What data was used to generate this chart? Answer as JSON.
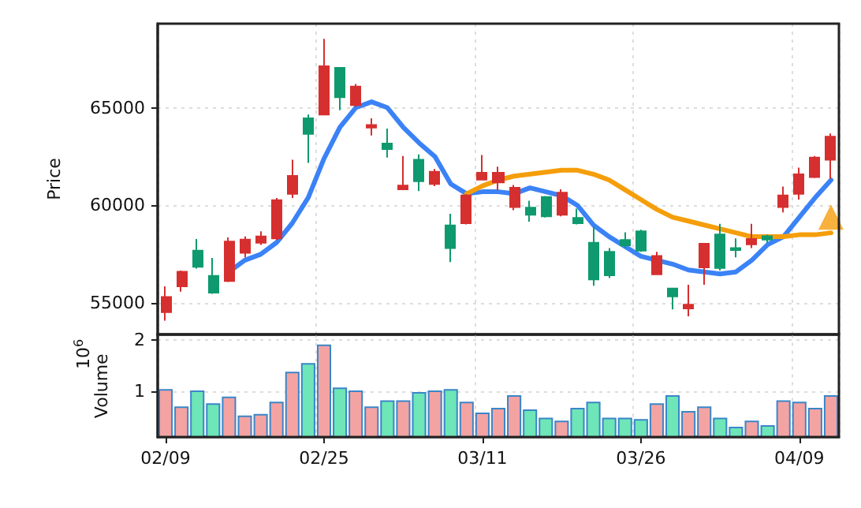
{
  "chart_data": [
    {
      "type": "candlestick",
      "ylabel": "Price",
      "tick_labels": "y",
      "grid": true,
      "ylim": [
        53400,
        69300
      ],
      "yticks": [
        55000,
        60000,
        65000
      ],
      "categories": [
        null,
        null,
        null,
        null,
        null,
        null,
        null,
        null,
        null,
        null,
        null,
        null,
        null,
        null,
        null,
        null,
        null,
        null,
        null,
        null,
        null,
        null,
        null,
        null,
        null,
        null,
        null,
        null,
        null,
        null,
        null,
        null,
        null,
        null,
        null,
        null,
        null,
        null,
        null,
        null,
        null,
        null,
        null
      ],
      "ohlc": [
        [
          54540,
          55860,
          54110,
          55320
        ],
        [
          55860,
          56670,
          55590,
          56610
        ],
        [
          57690,
          58280,
          56770,
          56860
        ],
        [
          56400,
          57310,
          55480,
          55540
        ],
        [
          56130,
          58360,
          56080,
          58150
        ],
        [
          57580,
          58410,
          57340,
          58250
        ],
        [
          58090,
          58680,
          57980,
          58410
        ],
        [
          58310,
          60380,
          58230,
          60270
        ],
        [
          60590,
          62340,
          60380,
          61510
        ],
        [
          64460,
          64650,
          62180,
          63660
        ],
        [
          64650,
          68520,
          64650,
          67120
        ],
        [
          67040,
          67040,
          64870,
          65540
        ],
        [
          65130,
          66210,
          65030,
          66080
        ],
        [
          63980,
          64460,
          63580,
          64110
        ],
        [
          63170,
          63930,
          62450,
          62880
        ],
        [
          60830,
          62530,
          60780,
          61020
        ],
        [
          62340,
          62610,
          60730,
          61240
        ],
        [
          61100,
          61860,
          60990,
          61720
        ],
        [
          58980,
          59570,
          57100,
          57820
        ],
        [
          59090,
          60570,
          59030,
          60510
        ],
        [
          61320,
          62580,
          61320,
          61670
        ],
        [
          61180,
          61990,
          60780,
          61670
        ],
        [
          59920,
          61050,
          59760,
          60910
        ],
        [
          59890,
          60240,
          59170,
          59520
        ],
        [
          60430,
          60480,
          59380,
          59440
        ],
        [
          59520,
          60830,
          59440,
          60650
        ],
        [
          59360,
          59840,
          59030,
          59090
        ],
        [
          58090,
          58900,
          55890,
          56210
        ],
        [
          57630,
          57820,
          56290,
          56430
        ],
        [
          58230,
          58630,
          57820,
          57960
        ],
        [
          58680,
          58760,
          57630,
          57690
        ],
        [
          56480,
          57630,
          56480,
          57420
        ],
        [
          55750,
          55750,
          54680,
          55350
        ],
        [
          54730,
          55940,
          54330,
          54920
        ],
        [
          56830,
          58040,
          55940,
          58040
        ],
        [
          58520,
          59060,
          56670,
          56800
        ],
        [
          57820,
          58310,
          57340,
          57720
        ],
        [
          58010,
          59060,
          57820,
          58280
        ],
        [
          58420,
          58500,
          58090,
          58250
        ],
        [
          59920,
          60970,
          59650,
          60510
        ],
        [
          60590,
          61940,
          60300,
          61590
        ],
        [
          61450,
          62530,
          61400,
          62450
        ],
        [
          62340,
          63680,
          61370,
          63520
        ]
      ],
      "colors": [
        "#d62f2f",
        "#d62f2f",
        "#0e9a6e",
        "#0e9a6e",
        "#d62f2f",
        "#d62f2f",
        "#d62f2f",
        "#d62f2f",
        "#d62f2f",
        "#0e9a6e",
        "#d62f2f",
        "#0e9a6e",
        "#d62f2f",
        "#d62f2f",
        "#0e9a6e",
        "#d62f2f",
        "#0e9a6e",
        "#d62f2f",
        "#0e9a6e",
        "#d62f2f",
        "#d62f2f",
        "#d62f2f",
        "#d62f2f",
        "#0e9a6e",
        "#0e9a6e",
        "#d62f2f",
        "#0e9a6e",
        "#0e9a6e",
        "#0e9a6e",
        "#0e9a6e",
        "#0e9a6e",
        "#d62f2f",
        "#0e9a6e",
        "#d62f2f",
        "#d62f2f",
        "#0e9a6e",
        "#0e9a6e",
        "#d62f2f",
        "#0e9a6e",
        "#d62f2f",
        "#d62f2f",
        "#d62f2f",
        "#d62f2f"
      ],
      "series": [
        {
          "type": "line",
          "color": "#3b82f6",
          "values": [
            null,
            null,
            null,
            null,
            56600,
            57200,
            57500,
            58100,
            59100,
            60400,
            62400,
            64000,
            65000,
            65300,
            65000,
            64000,
            63200,
            62500,
            61100,
            60600,
            60700,
            60700,
            60600,
            60900,
            60700,
            60500,
            60000,
            59000,
            58400,
            57900,
            57400,
            57200,
            57000,
            56700,
            56600,
            56500,
            56600,
            57200,
            58000,
            58400,
            59400,
            60400,
            61300
          ]
        },
        {
          "type": "line",
          "color": "#f59e0b",
          "values": [
            null,
            null,
            null,
            null,
            null,
            null,
            null,
            null,
            null,
            null,
            null,
            null,
            null,
            null,
            null,
            null,
            null,
            null,
            null,
            60600,
            61000,
            61300,
            61500,
            61600,
            61700,
            61800,
            61800,
            61600,
            61300,
            60800,
            60300,
            59800,
            59400,
            59200,
            59000,
            58800,
            58600,
            58400,
            58400,
            58400,
            58500,
            58500,
            58600
          ]
        },
        {
          "type": "scatter",
          "marker": "triangle",
          "color": "#f59e0b",
          "values": [
            null,
            null,
            null,
            null,
            null,
            null,
            null,
            null,
            null,
            null,
            null,
            null,
            null,
            null,
            null,
            null,
            null,
            null,
            null,
            null,
            null,
            null,
            null,
            null,
            null,
            null,
            null,
            null,
            null,
            null,
            null,
            null,
            null,
            null,
            null,
            null,
            null,
            null,
            null,
            null,
            null,
            null,
            59400
          ]
        }
      ]
    },
    {
      "type": "bar",
      "ylabel": "Volume",
      "annotations": [
        "10$^{6}$"
      ],
      "grid": true,
      "ylim": [
        0.1,
        2.1
      ],
      "yticks": [
        1,
        2
      ],
      "categories": [
        "02/09",
        null,
        null,
        null,
        null,
        null,
        null,
        null,
        null,
        null,
        "02/25",
        null,
        null,
        null,
        null,
        null,
        null,
        null,
        null,
        null,
        "03/11",
        null,
        null,
        null,
        null,
        null,
        null,
        null,
        null,
        null,
        "03/26",
        null,
        null,
        null,
        null,
        null,
        null,
        null,
        null,
        null,
        "04/09",
        null,
        null
      ],
      "values": [
        1.04,
        0.7,
        1.01,
        0.76,
        0.89,
        0.52,
        0.55,
        0.79,
        1.38,
        1.55,
        1.91,
        1.07,
        1.01,
        0.7,
        0.82,
        0.82,
        0.98,
        1.01,
        1.04,
        0.79,
        0.58,
        0.67,
        0.92,
        0.64,
        0.48,
        0.42,
        0.67,
        0.79,
        0.48,
        0.48,
        0.45,
        0.76,
        0.92,
        0.61,
        0.7,
        0.48,
        0.3,
        0.42,
        0.33,
        0.82,
        0.79,
        0.67,
        0.92
      ],
      "colors": [
        "#f4a3a3",
        "#f4a3a3",
        "#6ee6b8",
        "#6ee6b8",
        "#f4a3a3",
        "#f4a3a3",
        "#f4a3a3",
        "#f4a3a3",
        "#f4a3a3",
        "#6ee6b8",
        "#f4a3a3",
        "#6ee6b8",
        "#f4a3a3",
        "#f4a3a3",
        "#6ee6b8",
        "#f4a3a3",
        "#6ee6b8",
        "#f4a3a3",
        "#6ee6b8",
        "#f4a3a3",
        "#f4a3a3",
        "#f4a3a3",
        "#f4a3a3",
        "#6ee6b8",
        "#6ee6b8",
        "#f4a3a3",
        "#6ee6b8",
        "#6ee6b8",
        "#6ee6b8",
        "#6ee6b8",
        "#6ee6b8",
        "#f4a3a3",
        "#6ee6b8",
        "#f4a3a3",
        "#f4a3a3",
        "#6ee6b8",
        "#6ee6b8",
        "#f4a3a3",
        "#6ee6b8",
        "#f4a3a3",
        "#f4a3a3",
        "#f4a3a3",
        "#f4a3a3"
      ]
    }
  ]
}
